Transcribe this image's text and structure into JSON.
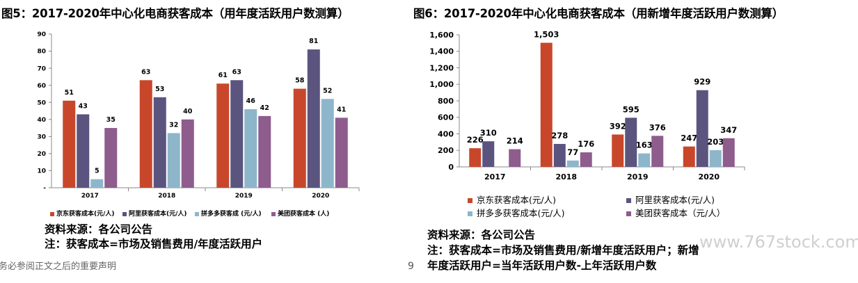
{
  "figures": {
    "left_title": "图5：2017-2020年中心化电商获客成本（用年度活跃用户数测算）",
    "right_title": "图6：2017-2020年中心化电商获客成本（用新增年度活跃用户数测算）"
  },
  "colors": {
    "jd": "#C8472B",
    "ali": "#5A547F",
    "pdd": "#8DB6CB",
    "meituan": "#8E5C8D"
  },
  "chart_data": [
    {
      "type": "bar",
      "title": "2017-2020年中心化电商获客成本（用年度活跃用户数测算）",
      "categories": [
        "2017",
        "2018",
        "2019",
        "2020"
      ],
      "series": [
        {
          "name": "京东获客成本(元/人)",
          "values": [
            51,
            63,
            61,
            58
          ]
        },
        {
          "name": "阿里获客成本(元/人)",
          "values": [
            43,
            53,
            63,
            81
          ]
        },
        {
          "name": "拼多多获客成 (元/人)",
          "values": [
            5,
            32,
            46,
            52
          ]
        },
        {
          "name": "美团获客成本 (人)",
          "values": [
            35,
            40,
            42,
            41
          ]
        }
      ],
      "yticks": [
        "-",
        "10",
        "20",
        "30",
        "40",
        "50",
        "60",
        "70",
        "80",
        "90"
      ],
      "ylim": [
        0,
        90
      ],
      "legend": "bottom"
    },
    {
      "type": "bar",
      "title": "2017-2020年中心化电商获客成本（用新增年度活跃用户数测算）",
      "categories": [
        "2017",
        "2018",
        "2019",
        "2020"
      ],
      "series": [
        {
          "name": "京东获客成本(元/人)",
          "values": [
            226,
            1503,
            392,
            247
          ]
        },
        {
          "name": "阿里获客成本(元/人)",
          "values": [
            310,
            278,
            595,
            929
          ]
        },
        {
          "name": "拼多多获客成本(元/人)",
          "values": [
            null,
            77,
            163,
            203
          ]
        },
        {
          "name": "美团获客成本（元/人）",
          "values": [
            214,
            176,
            376,
            347
          ]
        }
      ],
      "value_labels": [
        [
          "226",
          "1,503",
          "392",
          "247"
        ],
        [
          "310",
          "278",
          "595",
          "929"
        ],
        [
          "",
          "77",
          "163",
          "203"
        ],
        [
          "214",
          "176",
          "376",
          "347"
        ]
      ],
      "yticks": [
        "0",
        "200",
        "400",
        "600",
        "800",
        "1,000",
        "1,200",
        "1,400",
        "1,600"
      ],
      "ylim": [
        0,
        1600
      ],
      "legend": "bottom"
    }
  ],
  "left_notes": {
    "source": "资料来源：各公司公告",
    "note": "注：获客成本=市场及销售费用/年度活跃用户"
  },
  "right_notes": {
    "source": "资料来源：各公司公告",
    "note_line1": "注：获客成本=市场及销售费用/新增年度活跃用户；新增",
    "note_line2": "年度活跃用户=当年活跃用户数-上年活跃用户数"
  },
  "footer": {
    "disclaimer": "务必参阅正文之后的重要声明",
    "page_number": "9"
  },
  "watermark": "www.767stock.com"
}
